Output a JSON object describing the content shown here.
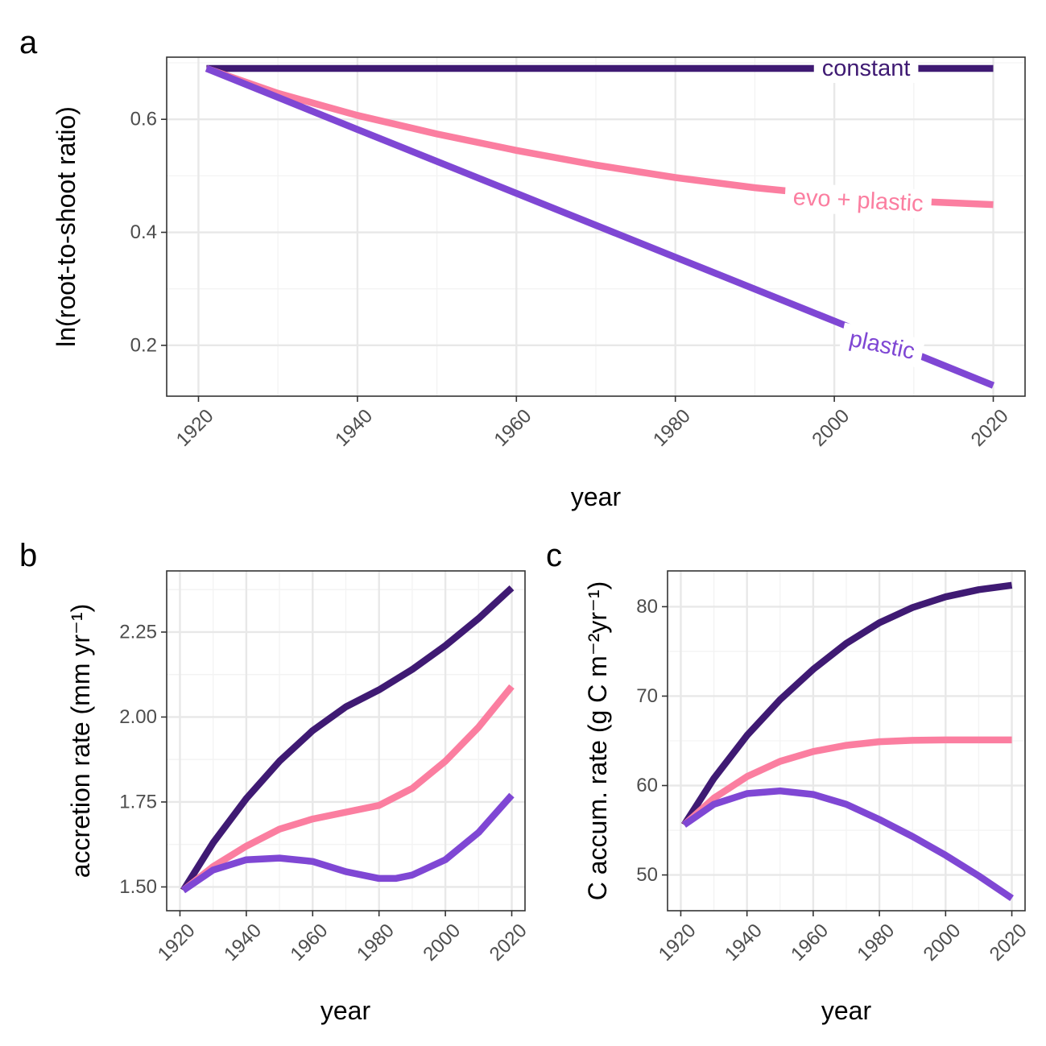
{
  "colors": {
    "constant": "#3f1a73",
    "evo_plastic": "#fb7ea0",
    "plastic": "#7f47d4",
    "grid_major": "#e8e8e8",
    "grid_minor": "#f3f3f3",
    "panel_border": "#333333"
  },
  "chart_data": [
    {
      "panel": "a",
      "type": "line",
      "xlabel": "year",
      "ylabel": "ln(root-to-shoot ratio)",
      "xlim": [
        1916,
        2024
      ],
      "ylim": [
        0.11,
        0.71
      ],
      "x_ticks": [
        "1920",
        "1940",
        "1960",
        "1980",
        "2000",
        "2020"
      ],
      "y_ticks": [
        "0.2",
        "0.4",
        "0.6"
      ],
      "grid": true,
      "legend": "inline labels",
      "series": [
        {
          "name": "constant",
          "color_key": "constant",
          "label_at": [
            2004,
            0.69
          ],
          "label_angle": 0,
          "x": [
            1921,
            1940,
            1960,
            1980,
            2000,
            2020
          ],
          "y": [
            0.69,
            0.69,
            0.69,
            0.69,
            0.69,
            0.69
          ]
        },
        {
          "name": "evo + plastic",
          "color_key": "evo_plastic",
          "label_at": [
            2003,
            0.456
          ],
          "label_angle": 3,
          "x": [
            1921,
            1930,
            1940,
            1950,
            1960,
            1970,
            1980,
            1990,
            2000,
            2010,
            2020
          ],
          "y": [
            0.69,
            0.646,
            0.607,
            0.574,
            0.545,
            0.519,
            0.497,
            0.479,
            0.465,
            0.455,
            0.449
          ]
        },
        {
          "name": "plastic",
          "color_key": "plastic",
          "label_at": [
            2006,
            0.2
          ],
          "label_angle": 12,
          "x": [
            1921,
            1940,
            1960,
            1980,
            2000,
            2020
          ],
          "y": [
            0.69,
            0.582,
            0.469,
            0.356,
            0.243,
            0.129
          ]
        }
      ]
    },
    {
      "panel": "b",
      "type": "line",
      "xlabel": "year",
      "ylabel": "accretion rate (mm yr⁻¹)",
      "xlim": [
        1916,
        2024
      ],
      "ylim": [
        1.43,
        2.43
      ],
      "x_ticks": [
        "1920",
        "1940",
        "1960",
        "1980",
        "2000",
        "2020"
      ],
      "y_ticks": [
        "1.50",
        "1.75",
        "2.00",
        "2.25"
      ],
      "grid": true,
      "series": [
        {
          "color_key": "constant",
          "x": [
            1921,
            1930,
            1940,
            1950,
            1960,
            1970,
            1980,
            1990,
            2000,
            2010,
            2020
          ],
          "y": [
            1.49,
            1.63,
            1.76,
            1.87,
            1.96,
            2.03,
            2.08,
            2.14,
            2.21,
            2.29,
            2.38
          ]
        },
        {
          "color_key": "evo_plastic",
          "x": [
            1921,
            1930,
            1940,
            1950,
            1960,
            1970,
            1980,
            1990,
            2000,
            2010,
            2020
          ],
          "y": [
            1.49,
            1.56,
            1.62,
            1.67,
            1.7,
            1.72,
            1.74,
            1.79,
            1.87,
            1.97,
            2.09
          ]
        },
        {
          "color_key": "plastic",
          "x": [
            1921,
            1930,
            1940,
            1950,
            1960,
            1970,
            1980,
            1985,
            1990,
            2000,
            2010,
            2020
          ],
          "y": [
            1.49,
            1.55,
            1.58,
            1.585,
            1.575,
            1.545,
            1.525,
            1.525,
            1.535,
            1.58,
            1.66,
            1.77
          ]
        }
      ]
    },
    {
      "panel": "c",
      "type": "line",
      "xlabel": "year",
      "ylabel": "C accum. rate (g C m⁻²yr⁻¹)",
      "xlim": [
        1916,
        2024
      ],
      "ylim": [
        46,
        84
      ],
      "x_ticks": [
        "1920",
        "1940",
        "1960",
        "1980",
        "2000",
        "2020"
      ],
      "y_ticks": [
        "50",
        "60",
        "70",
        "80"
      ],
      "grid": true,
      "series": [
        {
          "color_key": "constant",
          "x": [
            1921,
            1930,
            1940,
            1950,
            1960,
            1970,
            1980,
            1990,
            2000,
            2010,
            2020
          ],
          "y": [
            55.6,
            60.8,
            65.6,
            69.6,
            73.0,
            75.9,
            78.2,
            79.9,
            81.1,
            81.9,
            82.4
          ]
        },
        {
          "color_key": "evo_plastic",
          "x": [
            1921,
            1930,
            1940,
            1950,
            1960,
            1970,
            1980,
            1990,
            2000,
            2010,
            2020
          ],
          "y": [
            55.6,
            58.6,
            61.0,
            62.7,
            63.8,
            64.5,
            64.9,
            65.05,
            65.1,
            65.1,
            65.1
          ]
        },
        {
          "color_key": "plastic",
          "x": [
            1921,
            1930,
            1940,
            1950,
            1960,
            1970,
            1980,
            1990,
            2000,
            2010,
            2020
          ],
          "y": [
            55.6,
            57.9,
            59.1,
            59.4,
            59.0,
            57.9,
            56.2,
            54.3,
            52.2,
            49.9,
            47.4
          ]
        }
      ]
    }
  ]
}
